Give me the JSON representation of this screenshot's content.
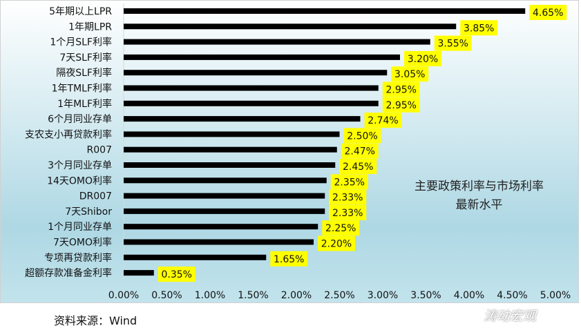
{
  "chart_data": {
    "type": "bar",
    "orientation": "horizontal",
    "categories": [
      "5年期以上LPR",
      "1年期LPR",
      "1个月SLF利率",
      "7天SLF利率",
      "隔夜SLF利率",
      "1年TMLF利率",
      "1年MLF利率",
      "6个月同业存单",
      "支农支小再贷款利率",
      "R007",
      "3个月同业存单",
      "14天OMO利率",
      "DR007",
      "7天Shibor",
      "1个月同业存单",
      "7天OMO利率",
      "专项再贷款利率",
      "超额存款准备金利率"
    ],
    "values": [
      4.65,
      3.85,
      3.55,
      3.2,
      3.05,
      2.95,
      2.95,
      2.74,
      2.5,
      2.47,
      2.45,
      2.35,
      2.33,
      2.33,
      2.25,
      2.2,
      1.65,
      0.35
    ],
    "data_labels": [
      "4.65%",
      "3.85%",
      "3.55%",
      "3.20%",
      "3.05%",
      "2.95%",
      "2.95%",
      "2.74%",
      "2.50%",
      "2.47%",
      "2.45%",
      "2.35%",
      "2.33%",
      "2.33%",
      "2.25%",
      "2.20%",
      "1.65%",
      "0.35%"
    ],
    "xlim": [
      0,
      5
    ],
    "x_ticks": [
      "0.00%",
      "0.50%",
      "1.00%",
      "1.50%",
      "2.00%",
      "2.50%",
      "3.00%",
      "3.50%",
      "4.00%",
      "4.50%",
      "5.00%"
    ],
    "annotation": [
      "主要政策利率与市场利率",
      "最新水平"
    ],
    "bar_color": "#000000",
    "label_bg": "#ffff00",
    "grid": false
  },
  "source": "资料来源：Wind",
  "watermark": "涛动宏观"
}
